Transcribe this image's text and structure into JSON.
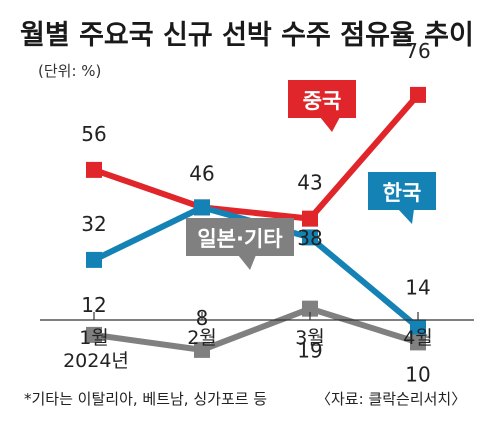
{
  "chart_data": {
    "type": "line",
    "title": "월별 주요국 신규 선박 수주 점유율 추이",
    "unit_label": "(단위: %)",
    "categories": [
      "1월",
      "2월",
      "3월",
      "4월"
    ],
    "x_sublabel": "2024년",
    "ylim": [
      0,
      80
    ],
    "grid": false,
    "series": [
      {
        "name": "중국",
        "values": [
          56,
          46,
          43,
          76
        ],
        "color": "#e0262a"
      },
      {
        "name": "한국",
        "values": [
          32,
          46,
          38,
          14
        ],
        "color": "#1482b4"
      },
      {
        "name": "일본·기타",
        "values": [
          12,
          8,
          19,
          10
        ],
        "color": "#808080"
      }
    ],
    "data_labels": {
      "중국": [
        "56",
        "",
        "43",
        "76"
      ],
      "한국": [
        "32",
        "46",
        "",
        "14"
      ],
      "일본·기타": [
        "12",
        "8",
        "19",
        "10"
      ]
    },
    "extra_label": "38",
    "footnote": "*기타는 이탈리아, 베트남, 싱가포르 등",
    "source": "〈자료: 클락슨리서치〉"
  }
}
